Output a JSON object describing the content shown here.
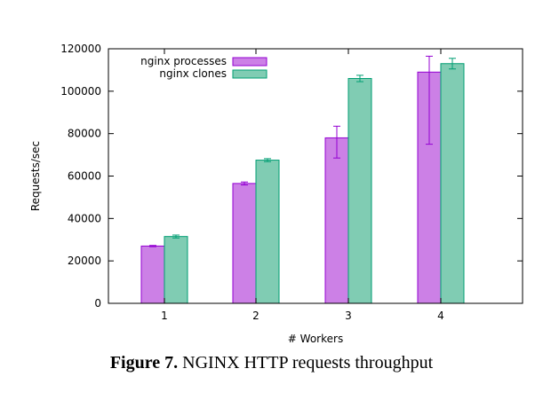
{
  "chart_data": {
    "type": "bar",
    "title": "",
    "xlabel": "# Workers",
    "ylabel": "Requests/sec",
    "categories": [
      "1",
      "2",
      "3",
      "4"
    ],
    "ylim": [
      0,
      120000
    ],
    "yticks": [
      "0",
      "20000",
      "40000",
      "60000",
      "80000",
      "100000",
      "120000"
    ],
    "legend_position": "top-left",
    "series": [
      {
        "name": "nginx processes",
        "color": "#cc80e6",
        "stroke": "#9400d3",
        "values": [
          27000,
          56500,
          78000,
          109000
        ],
        "err_low": [
          26700,
          55800,
          68500,
          75000
        ],
        "err_high": [
          27300,
          57200,
          83500,
          116500
        ]
      },
      {
        "name": "nginx clones",
        "color": "#80ccb3",
        "stroke": "#009e73",
        "values": [
          31500,
          67500,
          106000,
          113000
        ],
        "err_low": [
          30800,
          66800,
          104500,
          110500
        ],
        "err_high": [
          32200,
          68200,
          107500,
          115500
        ]
      }
    ]
  },
  "caption": {
    "label": "Figure 7.",
    "text": "NGINX HTTP requests throughput"
  }
}
